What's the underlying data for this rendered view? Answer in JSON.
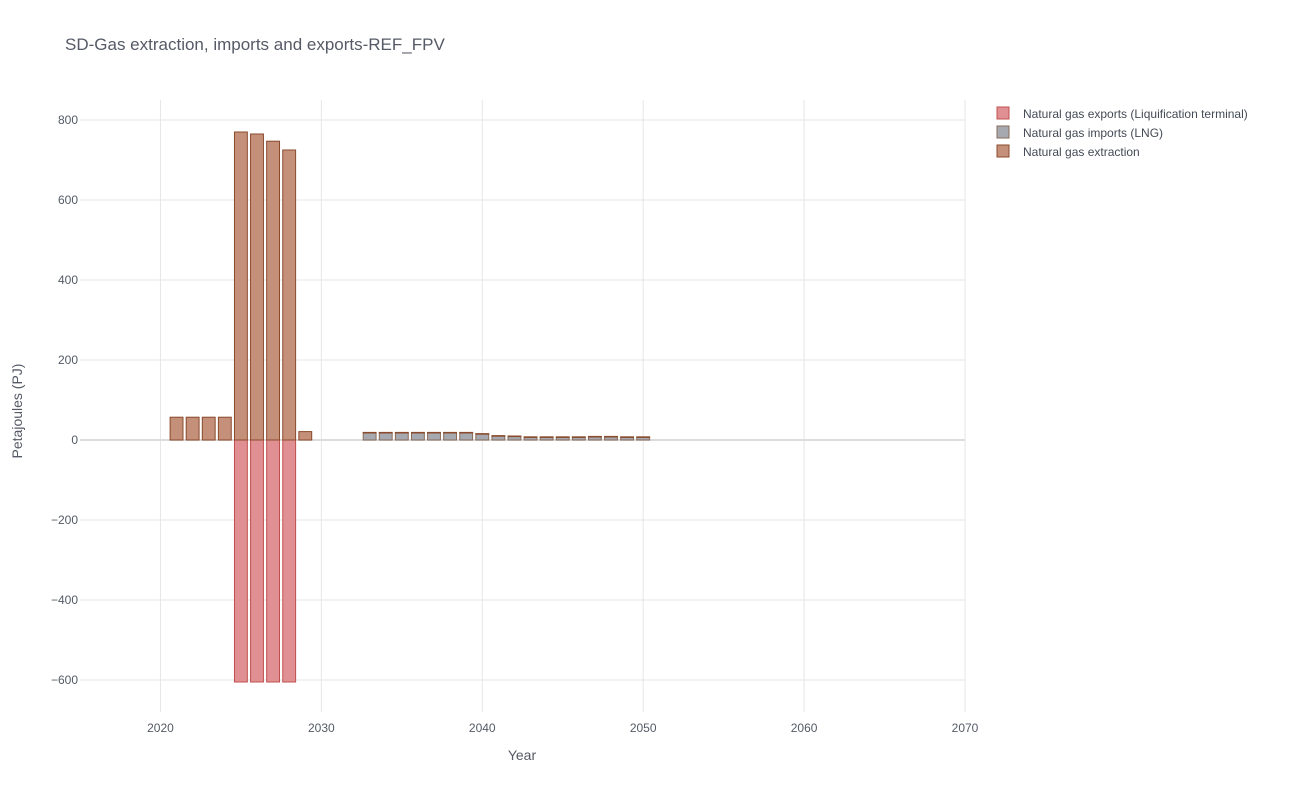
{
  "chart_data": {
    "type": "bar",
    "barmode": "relative",
    "title": "SD-Gas extraction, imports and exports-REF_FPV",
    "xlabel": "Year",
    "ylabel": "Petajoules (PJ)",
    "xlim": [
      2015,
      2070
    ],
    "ylim": [
      -680,
      850
    ],
    "x_ticks": [
      2020,
      2030,
      2040,
      2050,
      2060,
      2070
    ],
    "y_ticks": [
      -600,
      -400,
      -200,
      0,
      200,
      400,
      600,
      800
    ],
    "y_tick_labels": [
      "−600",
      "−400",
      "−200",
      "0",
      "200",
      "400",
      "600",
      "800"
    ],
    "grid": true,
    "legend_position": "top-right",
    "series": [
      {
        "name": "Natural gas exports (Liquification terminal)",
        "color": "#e08f93",
        "edge": "#c0504d",
        "points": [
          {
            "x": 2025,
            "y": -605
          },
          {
            "x": 2026,
            "y": -605
          },
          {
            "x": 2027,
            "y": -605
          },
          {
            "x": 2028,
            "y": -605
          }
        ]
      },
      {
        "name": "Natural gas imports (LNG)",
        "color": "#a6a9b0",
        "edge": "#8a6b5a",
        "points": [
          {
            "x": 2033,
            "y": 18
          },
          {
            "x": 2034,
            "y": 18
          },
          {
            "x": 2035,
            "y": 18
          },
          {
            "x": 2036,
            "y": 18
          },
          {
            "x": 2037,
            "y": 18
          },
          {
            "x": 2038,
            "y": 18
          },
          {
            "x": 2039,
            "y": 18
          },
          {
            "x": 2040,
            "y": 15
          },
          {
            "x": 2041,
            "y": 10
          },
          {
            "x": 2042,
            "y": 9
          },
          {
            "x": 2043,
            "y": 7
          },
          {
            "x": 2044,
            "y": 7
          },
          {
            "x": 2045,
            "y": 7
          },
          {
            "x": 2046,
            "y": 7
          },
          {
            "x": 2047,
            "y": 8
          },
          {
            "x": 2048,
            "y": 8
          },
          {
            "x": 2049,
            "y": 7
          },
          {
            "x": 2050,
            "y": 7
          }
        ]
      },
      {
        "name": "Natural gas extraction",
        "color": "#c4907a",
        "edge": "#8b4a2b",
        "points": [
          {
            "x": 2021,
            "y": 57
          },
          {
            "x": 2022,
            "y": 57
          },
          {
            "x": 2023,
            "y": 57
          },
          {
            "x": 2024,
            "y": 57
          },
          {
            "x": 2025,
            "y": 770
          },
          {
            "x": 2026,
            "y": 765
          },
          {
            "x": 2027,
            "y": 747
          },
          {
            "x": 2028,
            "y": 725
          },
          {
            "x": 2029,
            "y": 21
          },
          {
            "x": 2033,
            "y": 1
          },
          {
            "x": 2034,
            "y": 1
          },
          {
            "x": 2035,
            "y": 1
          },
          {
            "x": 2036,
            "y": 1
          },
          {
            "x": 2037,
            "y": 1
          },
          {
            "x": 2038,
            "y": 1
          },
          {
            "x": 2039,
            "y": 1
          },
          {
            "x": 2040,
            "y": 1
          },
          {
            "x": 2041,
            "y": 1
          },
          {
            "x": 2042,
            "y": 1
          },
          {
            "x": 2043,
            "y": 1
          },
          {
            "x": 2044,
            "y": 1
          },
          {
            "x": 2045,
            "y": 1
          },
          {
            "x": 2046,
            "y": 1
          },
          {
            "x": 2047,
            "y": 1
          },
          {
            "x": 2048,
            "y": 1
          },
          {
            "x": 2049,
            "y": 1
          },
          {
            "x": 2050,
            "y": 1
          }
        ]
      }
    ]
  }
}
